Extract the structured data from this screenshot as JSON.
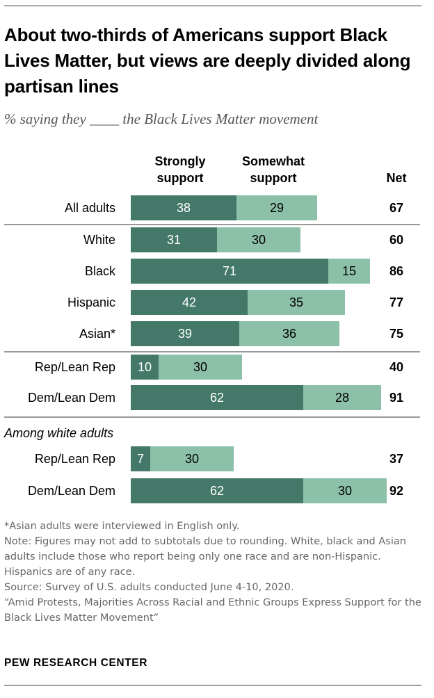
{
  "title": "About two-thirds of Americans support Black Lives Matter, but views are deeply divided along partisan lines",
  "subtitle": "% saying they ____ the Black Lives Matter movement",
  "chart_data": {
    "type": "bar",
    "orientation": "horizontal",
    "stacked": true,
    "series": [
      {
        "name": "Strongly support",
        "color": "#44796A",
        "values": [
          38,
          31,
          71,
          42,
          39,
          10,
          62,
          7,
          62
        ]
      },
      {
        "name": "Somewhat support",
        "color": "#8CC0A9",
        "values": [
          29,
          30,
          15,
          35,
          36,
          30,
          28,
          30,
          30
        ]
      }
    ],
    "categories": [
      "All adults",
      "White",
      "Black",
      "Hispanic",
      "Asian*",
      "Rep/Lean Rep",
      "Dem/Lean Dem",
      "Rep/Lean Rep",
      "Dem/Lean Dem"
    ],
    "net_label": "Net",
    "net": [
      67,
      60,
      86,
      77,
      75,
      40,
      91,
      37,
      92
    ],
    "section_label": "Among white adults",
    "xlim": [
      0,
      100
    ]
  },
  "headers": {
    "strongly": [
      "Strongly",
      "support"
    ],
    "somewhat": [
      "Somewhat",
      "support"
    ]
  },
  "notes": {
    "asterisk": "*Asian adults were interviewed in English only.",
    "note": "Note: Figures may not add to subtotals due to rounding. White, black and Asian adults include those who report being only one race and are non-Hispanic. Hispanics are of any race.",
    "source": "Source: Survey of U.S. adults conducted June 4-10, 2020.",
    "report": "“Amid Protests, Majorities Across Racial and Ethnic Groups Express Support for the Black Lives Matter Movement”"
  },
  "brand": "PEW RESEARCH CENTER",
  "colors": {
    "strong": "#44796A",
    "somewhat": "#8CC0A9",
    "rule": "#999999"
  }
}
